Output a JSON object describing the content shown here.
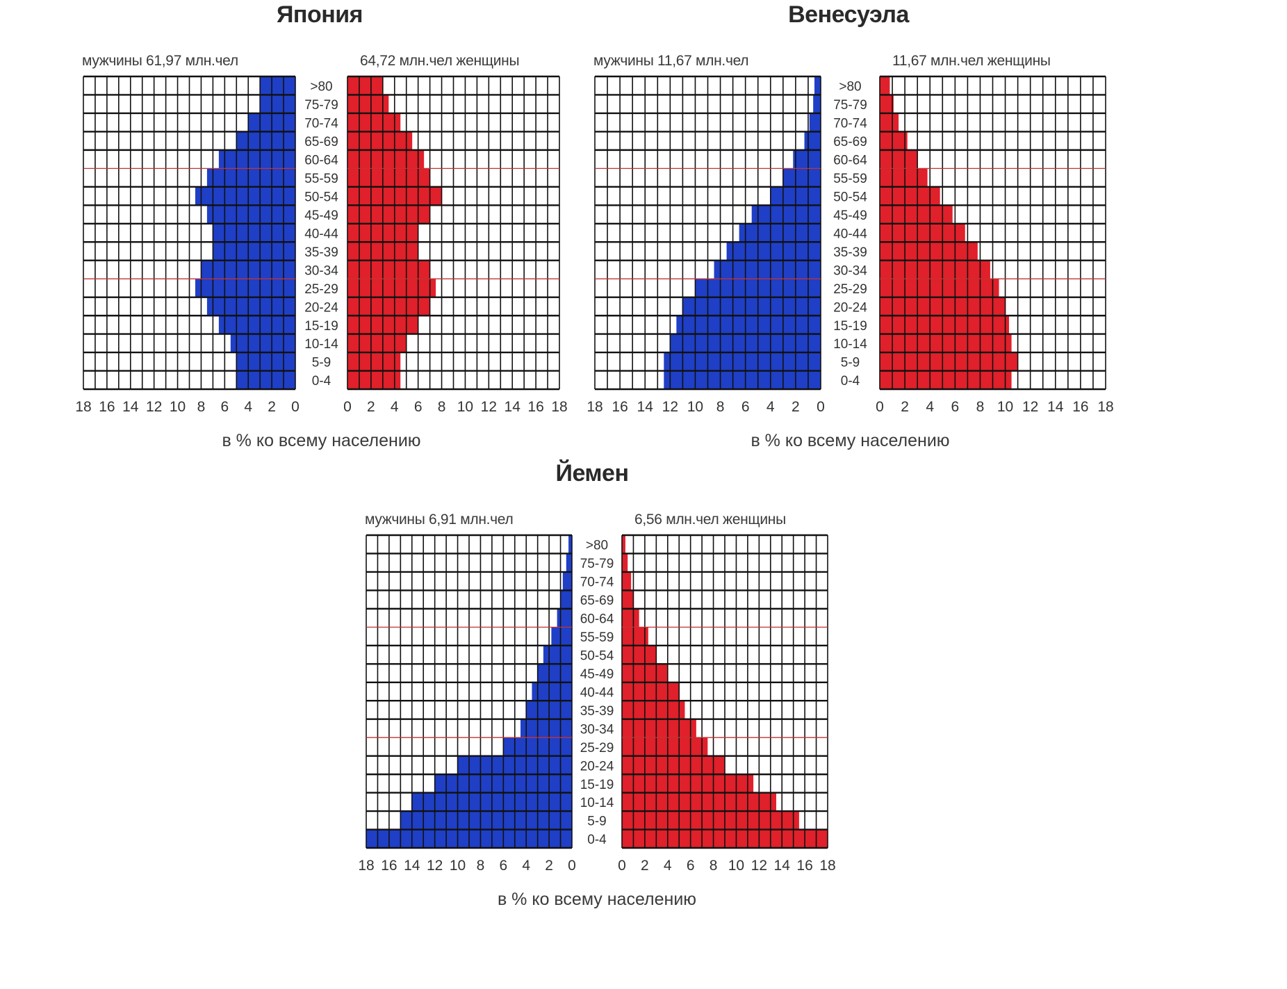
{
  "colors": {
    "male": "#1f3fc6",
    "female": "#e0202a",
    "grid": "#111111",
    "redline": "#c33333"
  },
  "chart_data": [
    {
      "type": "population-pyramid",
      "title": "Япония",
      "male_label": "мужчины 61,97 млн.чел",
      "female_label": "64,72 млн.чел женщины",
      "xlabel": "в % ко всему населению",
      "age_groups": [
        ">80",
        "75-79",
        "70-74",
        "65-69",
        "60-64",
        "55-59",
        "50-54",
        "45-49",
        "40-44",
        "35-39",
        "30-34",
        "25-29",
        "20-24",
        "15-19",
        "10-14",
        "5-9",
        "0-4"
      ],
      "male_ticks": [
        "18",
        "16",
        "14",
        "12",
        "10",
        "8",
        "6",
        "4",
        "2",
        "0"
      ],
      "female_ticks": [
        "0",
        "2",
        "4",
        "6",
        "8",
        "10",
        "12",
        "14",
        "16",
        "18"
      ],
      "xlim": [
        0,
        18
      ],
      "male_values": [
        3,
        3,
        4,
        5,
        6.5,
        7.5,
        8.5,
        7.5,
        7,
        7,
        8,
        8.5,
        7.5,
        6.5,
        5.5,
        5,
        5
      ],
      "female_values": [
        3,
        3.5,
        4.5,
        5.5,
        6.5,
        7,
        8,
        7,
        6,
        6,
        7,
        7.5,
        7,
        6,
        5,
        4.5,
        4.5
      ]
    },
    {
      "type": "population-pyramid",
      "title": "Венесуэла",
      "male_label": "мужчины 11,67 млн.чел",
      "female_label": "11,67 млн.чел женщины",
      "xlabel": "в % ко всему населению",
      "age_groups": [
        ">80",
        "75-79",
        "70-74",
        "65-69",
        "60-64",
        "55-59",
        "50-54",
        "45-49",
        "40-44",
        "35-39",
        "30-34",
        "25-29",
        "20-24",
        "15-19",
        "10-14",
        "5-9",
        "0-4"
      ],
      "male_ticks": [
        "18",
        "16",
        "14",
        "12",
        "10",
        "8",
        "6",
        "4",
        "2",
        "0"
      ],
      "female_ticks": [
        "0",
        "2",
        "4",
        "6",
        "8",
        "10",
        "12",
        "14",
        "16",
        "18"
      ],
      "xlim": [
        0,
        18
      ],
      "male_values": [
        0.5,
        0.6,
        0.9,
        1.3,
        2.2,
        3,
        4,
        5.5,
        6.5,
        7.5,
        8.5,
        10,
        11,
        11.5,
        12,
        12.5,
        12.5
      ],
      "female_values": [
        0.8,
        1.1,
        1.5,
        2.2,
        3,
        3.8,
        4.8,
        5.8,
        6.8,
        7.8,
        8.8,
        9.5,
        10,
        10.3,
        10.5,
        11,
        10.5
      ]
    },
    {
      "type": "population-pyramid",
      "title": "Йемен",
      "male_label": "мужчины 6,91 млн.чел",
      "female_label": "6,56 млн.чел женщины",
      "xlabel": "в % ко всему населению",
      "age_groups": [
        ">80",
        "75-79",
        "70-74",
        "65-69",
        "60-64",
        "55-59",
        "50-54",
        "45-49",
        "40-44",
        "35-39",
        "30-34",
        "25-29",
        "20-24",
        "15-19",
        "10-14",
        "5-9",
        "0-4"
      ],
      "male_ticks": [
        "18",
        "16",
        "14",
        "12",
        "10",
        "8",
        "6",
        "4",
        "2",
        "0"
      ],
      "female_ticks": [
        "0",
        "2",
        "4",
        "6",
        "8",
        "10",
        "12",
        "14",
        "16",
        "18"
      ],
      "xlim": [
        0,
        18
      ],
      "male_values": [
        0.3,
        0.5,
        0.8,
        1,
        1.3,
        1.8,
        2.5,
        3,
        3.5,
        4,
        4.5,
        6,
        10,
        12,
        14,
        15,
        18
      ],
      "female_values": [
        0.3,
        0.5,
        0.8,
        1,
        1.5,
        2.3,
        3,
        4,
        5,
        5.5,
        6.5,
        7.5,
        9,
        11.5,
        13.5,
        15.5,
        18
      ]
    }
  ]
}
